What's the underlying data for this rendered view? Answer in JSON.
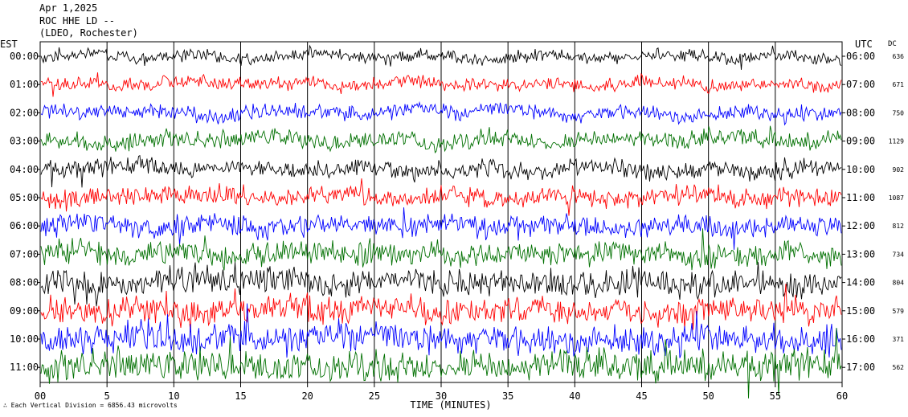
{
  "header": {
    "date": "Apr 1,2025",
    "station": "ROC HHE LD --",
    "network": "(LDEO, Rochester)"
  },
  "left_axis_title": "EST",
  "right_axis_title": "UTC",
  "dc_title": "DC",
  "footer_note": "Each Vertical Division = 6856.43 microvolts",
  "chart_data": {
    "type": "line",
    "title": "Apr 1,2025 ROC HHE LD -- (LDEO, Rochester)",
    "xlabel": "TIME (MINUTES)",
    "x_ticks": [
      "00",
      "5",
      "10",
      "15",
      "20",
      "25",
      "30",
      "35",
      "40",
      "45",
      "50",
      "55",
      "60"
    ],
    "xlim": [
      0,
      60
    ],
    "grid": true,
    "trace_colors": [
      "#000000",
      "#ff0000",
      "#0000ff",
      "#007000"
    ],
    "rows": [
      {
        "est": "00:00",
        "utc": "06:00",
        "dc": "636"
      },
      {
        "est": "01:00",
        "utc": "07:00",
        "dc": "671"
      },
      {
        "est": "02:00",
        "utc": "08:00",
        "dc": "750"
      },
      {
        "est": "03:00",
        "utc": "09:00",
        "dc": "1129"
      },
      {
        "est": "04:00",
        "utc": "10:00",
        "dc": "902"
      },
      {
        "est": "05:00",
        "utc": "11:00",
        "dc": "1087"
      },
      {
        "est": "06:00",
        "utc": "12:00",
        "dc": "812"
      },
      {
        "est": "07:00",
        "utc": "13:00",
        "dc": "734"
      },
      {
        "est": "08:00",
        "utc": "14:00",
        "dc": "804"
      },
      {
        "est": "09:00",
        "utc": "15:00",
        "dc": "579"
      },
      {
        "est": "10:00",
        "utc": "16:00",
        "dc": "371"
      },
      {
        "est": "11:00",
        "utc": "17:00",
        "dc": "562"
      }
    ],
    "noise_level": [
      0.15,
      0.2,
      0.25,
      0.35,
      0.35,
      0.45,
      0.55,
      0.65,
      0.7,
      0.75,
      0.8,
      0.85
    ]
  }
}
